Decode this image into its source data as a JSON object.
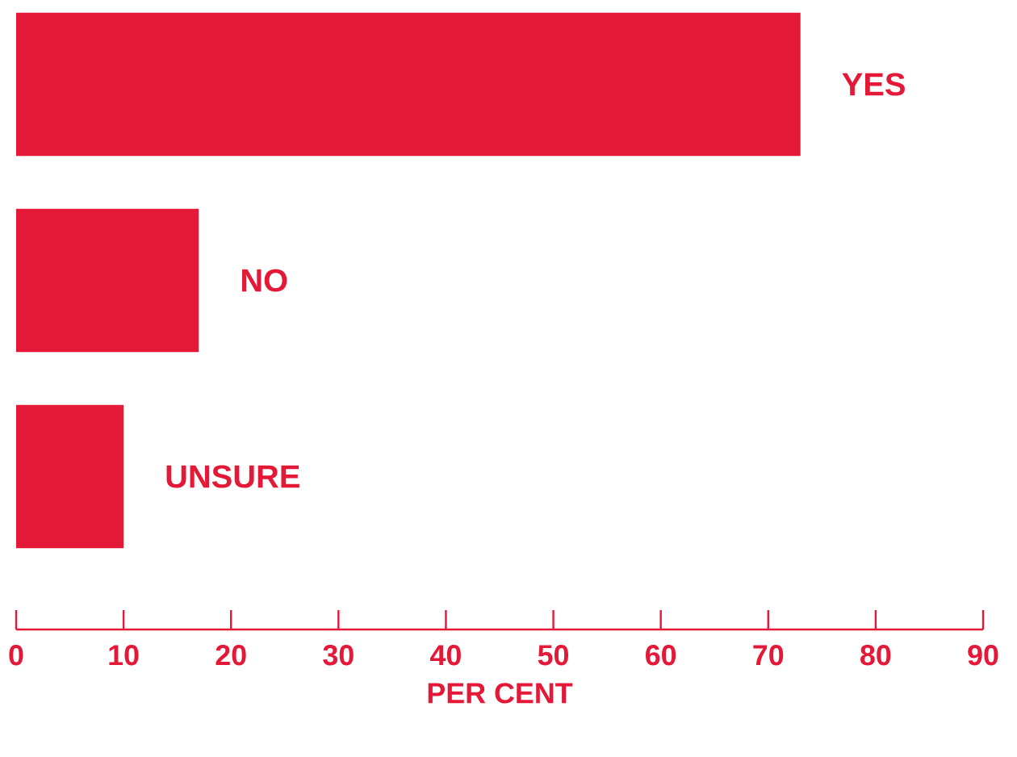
{
  "chart_data": {
    "type": "bar",
    "orientation": "horizontal",
    "categories": [
      "YES",
      "NO",
      "UNSURE"
    ],
    "values": [
      73,
      17,
      10
    ],
    "color": "#e31937",
    "xlabel": "PER CENT",
    "xlim": [
      0,
      90
    ],
    "xticks": [
      0,
      10,
      20,
      30,
      40,
      50,
      60,
      70,
      80,
      90
    ]
  }
}
